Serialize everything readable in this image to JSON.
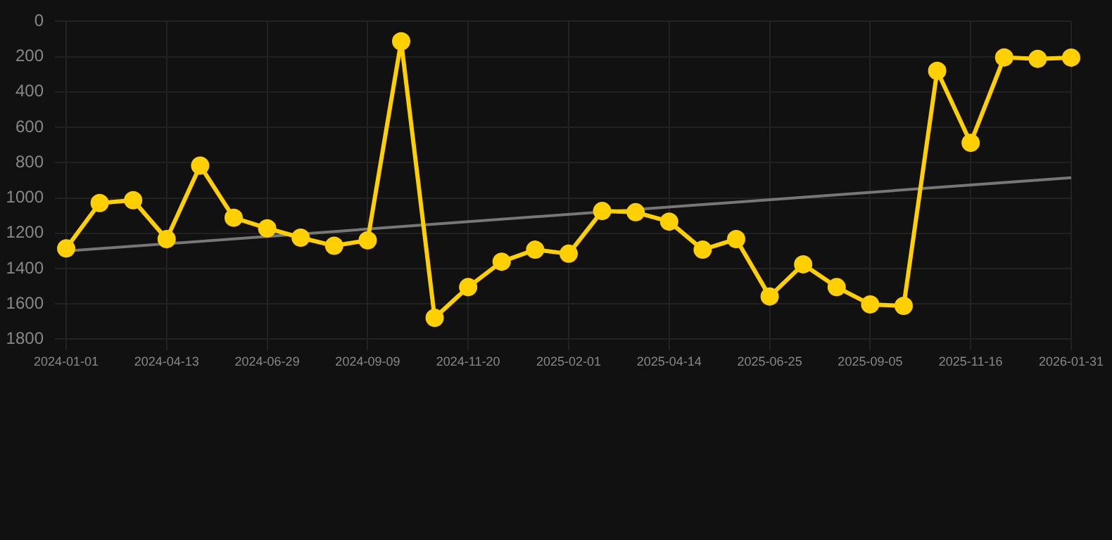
{
  "chart_data": {
    "type": "line",
    "categories": [
      "2024-01-01",
      null,
      null,
      "2024-04-13",
      null,
      null,
      "2024-06-29",
      null,
      null,
      "2024-09-09",
      null,
      null,
      "2024-11-20",
      null,
      null,
      "2025-02-01",
      null,
      null,
      "2025-04-14",
      null,
      null,
      "2025-06-25",
      null,
      null,
      "2025-09-05",
      null,
      null,
      "2025-11-16",
      null,
      null,
      "2026-01-31"
    ],
    "series": [
      {
        "color": "#ffd000",
        "marker": "circle",
        "values": [
          1286,
          1029,
          1013,
          1233,
          817,
          1112,
          1172,
          1225,
          1271,
          1240,
          113,
          1679,
          1505,
          1361,
          1293,
          1316,
          1074,
          1081,
          1134,
          1293,
          1233,
          1558,
          1376,
          1505,
          1603,
          1611,
          280,
          688,
          204,
          212,
          205
        ]
      },
      {
        "type": "line",
        "color": "#777777",
        "marker": "none",
        "values": [
          1301,
          null,
          null,
          null,
          null,
          null,
          null,
          null,
          null,
          null,
          null,
          null,
          null,
          null,
          null,
          null,
          null,
          null,
          null,
          null,
          null,
          null,
          null,
          null,
          null,
          null,
          null,
          null,
          null,
          null,
          885
        ]
      }
    ],
    "ylim": [
      1800,
      0
    ],
    "yticks": [
      0,
      200,
      400,
      600,
      800,
      1000,
      1200,
      1400,
      1600,
      1800
    ],
    "grid": true
  }
}
